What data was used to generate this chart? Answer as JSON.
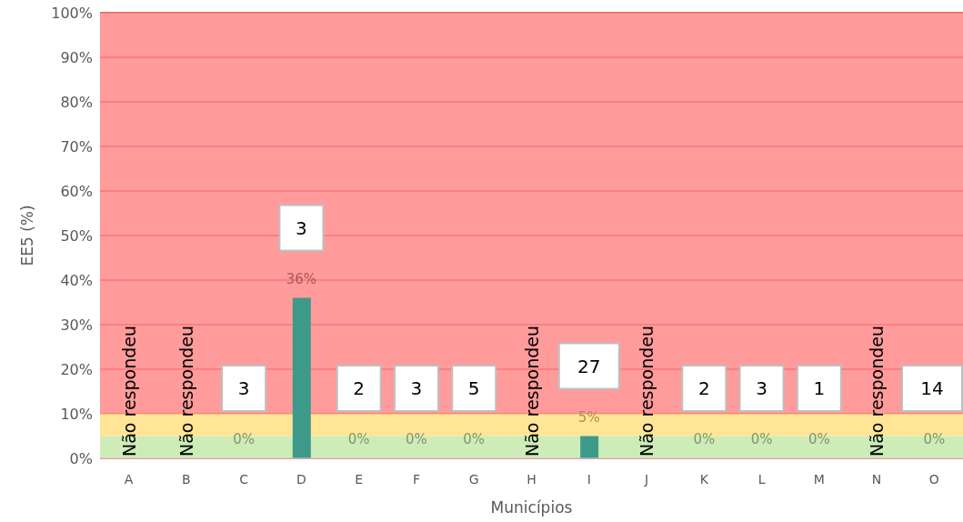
{
  "chart_data": {
    "type": "bar",
    "xlabel": "Municípios",
    "ylabel": "EE5 (%)",
    "categories": [
      "A",
      "B",
      "C",
      "D",
      "E",
      "F",
      "G",
      "H",
      "I",
      "J",
      "K",
      "L",
      "M",
      "N",
      "O"
    ],
    "values": [
      null,
      null,
      0,
      36,
      0,
      0,
      0,
      null,
      5,
      null,
      0,
      0,
      0,
      null,
      0
    ],
    "value_labels": [
      "Não respondeu",
      "Não respondeu",
      "0%",
      "36%",
      "0%",
      "0%",
      "0%",
      "Não respondeu",
      "5%",
      "Não respondeu",
      "0%",
      "0%",
      "0%",
      "Não respondeu",
      "0%"
    ],
    "color": "#3d9a8b",
    "ylim": [
      0,
      100
    ],
    "yticks": [
      {
        "value": 0,
        "label": "0%"
      },
      {
        "value": 10,
        "label": "10%"
      },
      {
        "value": 20,
        "label": "20%"
      },
      {
        "value": 30,
        "label": "30%"
      },
      {
        "value": 40,
        "label": "40%"
      },
      {
        "value": 50,
        "label": "50%"
      },
      {
        "value": 60,
        "label": "60%"
      },
      {
        "value": 70,
        "label": "70%"
      },
      {
        "value": 80,
        "label": "80%"
      },
      {
        "value": 90,
        "label": "90%"
      },
      {
        "value": 100,
        "label": "100%"
      }
    ],
    "grid": "y",
    "bands": [
      {
        "axis": "y",
        "from": 0,
        "to": 5,
        "color": "#c2e8a8"
      },
      {
        "axis": "y",
        "from": 5,
        "to": 10,
        "color": "#ffdf7e"
      },
      {
        "axis": "y",
        "from": 10,
        "to": 100,
        "color": "#ff8585"
      }
    ],
    "annotations": [
      "3",
      "3",
      "2",
      "3",
      "5",
      "27",
      "2",
      "3",
      "1",
      "14"
    ]
  }
}
